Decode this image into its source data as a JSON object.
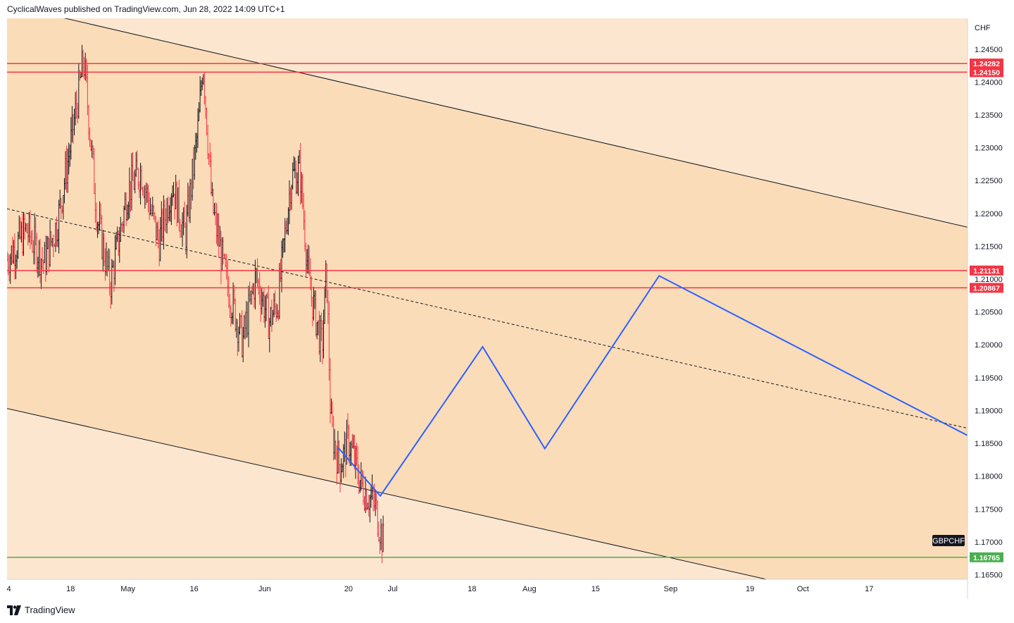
{
  "header": {
    "publisher_line": "CyclicalWaves published on TradingView.com, Jun 28, 2022 14:09 UTC+1"
  },
  "footer": {
    "brand_label": "TradingView",
    "logo_icon": "tradingview-logo-icon"
  },
  "colors": {
    "background_outer": "#fce6cf",
    "channel_fill": "#fbdcb8",
    "candle_up": "#131722",
    "candle_down": "#f23645",
    "resistance_line": "#f23645",
    "support_line": "#4caf50",
    "projection_line": "#2962ff",
    "channel_line": "#131722"
  },
  "chart_data": {
    "type": "candlestick",
    "symbol_label": "GBPCHF",
    "currency_label": "CHF",
    "x_tick_labels": [
      "4",
      "18",
      "May",
      "16",
      "Jun",
      "20",
      "Jul",
      "18",
      "Aug",
      "15",
      "Sep",
      "19",
      "Oct",
      "17"
    ],
    "x_ticks_days": [
      3,
      17,
      30,
      45,
      61,
      80,
      90,
      108,
      121,
      136,
      153,
      171,
      183,
      198
    ],
    "x_range_days": [
      2.6,
      220.3
    ],
    "y_tick_labels": [
      "1.24500",
      "1.24000",
      "1.23500",
      "1.23000",
      "1.22500",
      "1.22000",
      "1.21500",
      "1.21000",
      "1.20500",
      "1.20000",
      "1.19500",
      "1.19000",
      "1.18500",
      "1.18000",
      "1.17500",
      "1.17000",
      "1.16500"
    ],
    "y_ticks": [
      1.245,
      1.24,
      1.235,
      1.23,
      1.225,
      1.22,
      1.215,
      1.21,
      1.205,
      1.2,
      1.195,
      1.19,
      1.185,
      1.18,
      1.175,
      1.17,
      1.165
    ],
    "ylim": [
      1.1643,
      1.2497
    ],
    "horizontal_levels": [
      {
        "value": 1.24282,
        "label": "1.24282",
        "kind": "resistance"
      },
      {
        "value": 1.2415,
        "label": "1.24150",
        "kind": "resistance"
      },
      {
        "value": 1.21131,
        "label": "1.21131",
        "kind": "resistance"
      },
      {
        "value": 1.20867,
        "label": "1.20867",
        "kind": "resistance"
      },
      {
        "value": 1.16765,
        "label": "1.16765",
        "kind": "support"
      }
    ],
    "price_series": {
      "approximate_closes": [
        {
          "x": 2.6,
          "y": 1.213
        },
        {
          "x": 7,
          "y": 1.2175
        },
        {
          "x": 11,
          "y": 1.2125
        },
        {
          "x": 14,
          "y": 1.2185
        },
        {
          "x": 17,
          "y": 1.2305
        },
        {
          "x": 20,
          "y": 1.2435
        },
        {
          "x": 23,
          "y": 1.2195
        },
        {
          "x": 26,
          "y": 1.2092
        },
        {
          "x": 30,
          "y": 1.2235
        },
        {
          "x": 33,
          "y": 1.2265
        },
        {
          "x": 37,
          "y": 1.2155
        },
        {
          "x": 40,
          "y": 1.2245
        },
        {
          "x": 43,
          "y": 1.2165
        },
        {
          "x": 46,
          "y": 1.2335
        },
        {
          "x": 47,
          "y": 1.2435
        },
        {
          "x": 49,
          "y": 1.2215
        },
        {
          "x": 52,
          "y": 1.2105
        },
        {
          "x": 56,
          "y": 1.2005
        },
        {
          "x": 59,
          "y": 1.2105
        },
        {
          "x": 62,
          "y": 1.2035
        },
        {
          "x": 64,
          "y": 1.2065
        },
        {
          "x": 67,
          "y": 1.2255
        },
        {
          "x": 69,
          "y": 1.2265
        },
        {
          "x": 71,
          "y": 1.2095
        },
        {
          "x": 74,
          "y": 1.1995
        },
        {
          "x": 75,
          "y": 1.2115
        },
        {
          "x": 76,
          "y": 1.1875
        },
        {
          "x": 78,
          "y": 1.1815
        },
        {
          "x": 80,
          "y": 1.1855
        },
        {
          "x": 83,
          "y": 1.1785
        },
        {
          "x": 86,
          "y": 1.1755
        },
        {
          "x": 88,
          "y": 1.1695
        }
      ]
    },
    "projection_path": [
      {
        "x": 77.7,
        "y": 1.1843
      },
      {
        "x": 87.2,
        "y": 1.177
      },
      {
        "x": 110.4,
        "y": 1.1997
      },
      {
        "x": 124.5,
        "y": 1.1842
      },
      {
        "x": 150.4,
        "y": 1.2105
      },
      {
        "x": 220.3,
        "y": 1.1862
      }
    ],
    "channel_lines": [
      {
        "style": "solid",
        "points": [
          {
            "x": 15.8,
            "y": 1.2497
          },
          {
            "x": 220.3,
            "y": 1.2179
          }
        ]
      },
      {
        "style": "solid",
        "points": [
          {
            "x": 2.6,
            "y": 1.1903
          },
          {
            "x": 174.7,
            "y": 1.1643
          }
        ]
      },
      {
        "style": "dashed",
        "points": [
          {
            "x": 2.6,
            "y": 1.2207
          },
          {
            "x": 220.3,
            "y": 1.1873
          }
        ]
      }
    ]
  }
}
